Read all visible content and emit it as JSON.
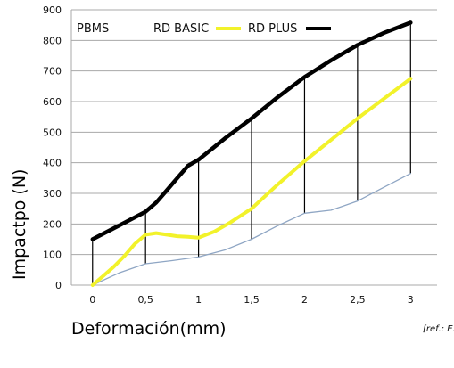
{
  "chart_data": {
    "type": "line",
    "x": [
      0,
      0.5,
      1,
      1.5,
      2,
      2.5,
      3
    ],
    "x_tick_labels": [
      "0",
      "0,5",
      "1",
      "1,5",
      "2",
      "2,5",
      "3"
    ],
    "y_tick_labels": [
      "0",
      "100",
      "200",
      "300",
      "400",
      "500",
      "600",
      "700",
      "800",
      "900"
    ],
    "xlim": [
      -0.2,
      3.25
    ],
    "ylim": [
      0,
      900
    ],
    "grid": "horizontal",
    "xlabel": "Deformación(mm)",
    "ylabel": "Impactpo (N)",
    "legend_position": "top-left",
    "legend_label": "PBMS",
    "reference_text": "[ref.: E.",
    "series": [
      {
        "name": "RD BASIC",
        "color": "#f2f22a",
        "x": [
          0,
          0.1,
          0.2,
          0.3,
          0.4,
          0.5,
          0.6,
          0.7,
          0.8,
          0.9,
          1,
          1.15,
          1.3,
          1.5,
          1.75,
          2,
          2.25,
          2.5,
          2.75,
          3
        ],
        "values": [
          0,
          30,
          60,
          95,
          135,
          165,
          170,
          165,
          160,
          158,
          155,
          175,
          205,
          250,
          330,
          405,
          475,
          545,
          610,
          675
        ]
      },
      {
        "name": "RD PLUS",
        "color": "#000000",
        "x": [
          0,
          0.25,
          0.5,
          0.6,
          0.7,
          0.8,
          0.9,
          1,
          1.25,
          1.5,
          1.75,
          2,
          2.25,
          2.5,
          2.75,
          3
        ],
        "values": [
          150,
          195,
          240,
          270,
          310,
          350,
          390,
          410,
          480,
          545,
          615,
          680,
          735,
          785,
          825,
          858
        ]
      },
      {
        "name": "PBMS",
        "color": "#8fa6c4",
        "x": [
          0,
          0.25,
          0.5,
          0.75,
          1,
          1.25,
          1.5,
          1.75,
          2,
          2.25,
          2.5,
          2.75,
          3
        ],
        "values": [
          0,
          40,
          70,
          80,
          92,
          115,
          150,
          195,
          235,
          245,
          275,
          320,
          365
        ]
      }
    ],
    "dropline_x": [
      0,
      0.5,
      1,
      1.5,
      2,
      2.5,
      3
    ]
  },
  "legend": {
    "items": [
      {
        "label": "RD BASIC",
        "color": "#f2f22a"
      },
      {
        "label": "RD PLUS",
        "color": "#000000"
      }
    ]
  }
}
